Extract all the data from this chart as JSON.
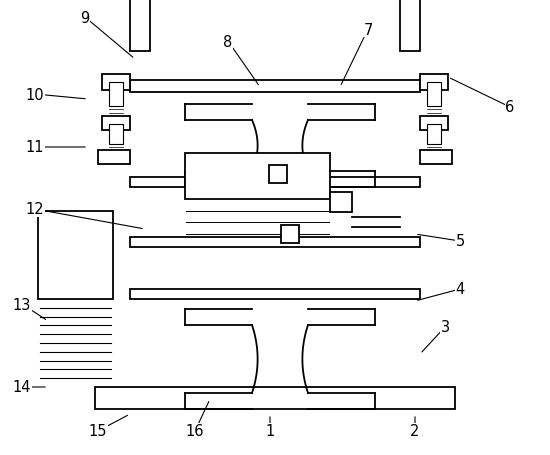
{
  "bg_color": "#ffffff",
  "line_color": "#000000",
  "fig_width": 5.5,
  "fig_height": 4.56,
  "dpi": 100,
  "annotations": [
    [
      "9",
      85,
      18,
      135,
      60
    ],
    [
      "10",
      35,
      95,
      88,
      100
    ],
    [
      "11",
      35,
      148,
      88,
      148
    ],
    [
      "12",
      35,
      210,
      145,
      230
    ],
    [
      "13",
      22,
      305,
      48,
      322
    ],
    [
      "14",
      22,
      388,
      48,
      388
    ],
    [
      "15",
      98,
      432,
      130,
      415
    ],
    [
      "16",
      195,
      432,
      210,
      400
    ],
    [
      "1",
      270,
      432,
      270,
      415
    ],
    [
      "2",
      415,
      432,
      415,
      415
    ],
    [
      "3",
      445,
      328,
      420,
      355
    ],
    [
      "4",
      460,
      290,
      415,
      302
    ],
    [
      "5",
      460,
      242,
      415,
      235
    ],
    [
      "6",
      510,
      108,
      448,
      78
    ],
    [
      "7",
      368,
      30,
      340,
      88
    ],
    [
      "8",
      228,
      42,
      260,
      88
    ]
  ]
}
